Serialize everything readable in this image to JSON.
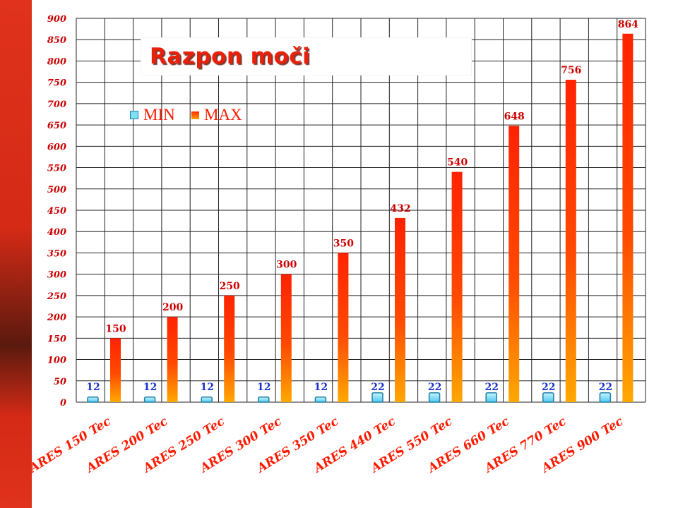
{
  "chart_data": {
    "type": "bar",
    "title": "Razpon moči",
    "categories": [
      "ARES 150 Tec",
      "ARES 200 Tec",
      "ARES 250 Tec",
      "ARES 300 Tec",
      "ARES 350 Tec",
      "ARES 440 Tec",
      "ARES 550 Tec",
      "ARES 660 Tec",
      "ARES 770 Tec",
      "ARES 900 Tec"
    ],
    "series": [
      {
        "name": "MIN",
        "values": [
          12,
          12,
          12,
          12,
          12,
          22,
          22,
          22,
          22,
          22
        ],
        "color": "#7ee0f5",
        "label_color": "#1a33cc"
      },
      {
        "name": "MAX",
        "values": [
          150,
          200,
          250,
          300,
          350,
          432,
          540,
          648,
          756,
          864
        ],
        "color": "#ff2a00",
        "label_color": "#cc0000"
      }
    ],
    "ylim": [
      0,
      900
    ],
    "yticks": [
      0,
      50,
      100,
      150,
      200,
      250,
      300,
      350,
      400,
      450,
      500,
      550,
      600,
      650,
      700,
      750,
      800,
      850,
      900
    ],
    "grid": true,
    "legend_position": "top-left"
  },
  "colors": {
    "accent": "#e0321c",
    "axis_text": "#cc0000",
    "max_bar_top": "#ff2a00",
    "max_bar_bottom": "#ffa000",
    "min_bar": "#7ee0f5"
  }
}
